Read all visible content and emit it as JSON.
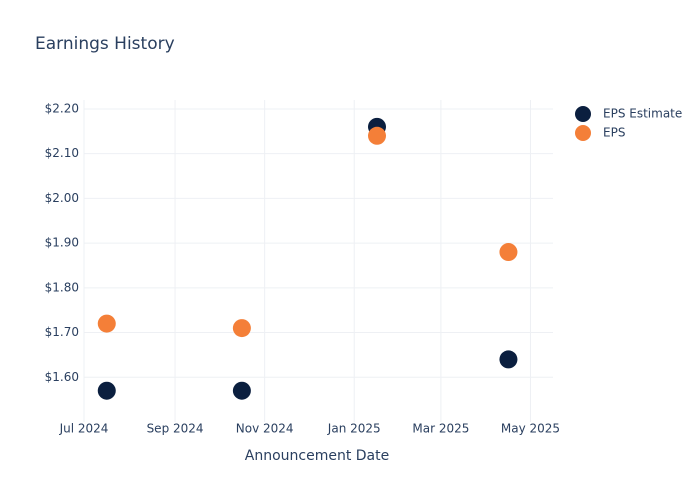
{
  "chart_data": {
    "type": "scatter",
    "title": "Earnings History",
    "x_label": "Announcement Date",
    "x": [
      "2024-07",
      "2024-10",
      "2025-01",
      "2025-04"
    ],
    "series": [
      {
        "name": "EPS Estimate",
        "color": "#0b1f3f",
        "values": [
          1.57,
          1.57,
          2.16,
          1.64
        ]
      },
      {
        "name": "EPS",
        "color": "#f47f38",
        "values": [
          1.72,
          1.71,
          2.14,
          1.88
        ]
      }
    ],
    "xlim": [
      "2024-07",
      "2025-06"
    ],
    "xticks": [
      {
        "value": "2024-07",
        "label": "Jul 2024"
      },
      {
        "value": "2024-09",
        "label": "Sep 2024"
      },
      {
        "value": "2024-11",
        "label": "Nov 2024"
      },
      {
        "value": "2025-01",
        "label": "Jan 2025"
      },
      {
        "value": "2025-03",
        "label": "Mar 2025"
      },
      {
        "value": "2025-05",
        "label": "May 2025"
      }
    ],
    "ylim": [
      1.5,
      2.22
    ],
    "yticks": [
      {
        "value": 1.6,
        "label": "$1.60"
      },
      {
        "value": 1.7,
        "label": "$1.70"
      },
      {
        "value": 1.8,
        "label": "$1.80"
      },
      {
        "value": 1.9,
        "label": "$1.90"
      },
      {
        "value": 2.0,
        "label": "$2.00"
      },
      {
        "value": 2.1,
        "label": "$2.10"
      },
      {
        "value": 2.2,
        "label": "$2.20"
      }
    ],
    "grid": true,
    "legend": "top-right"
  }
}
